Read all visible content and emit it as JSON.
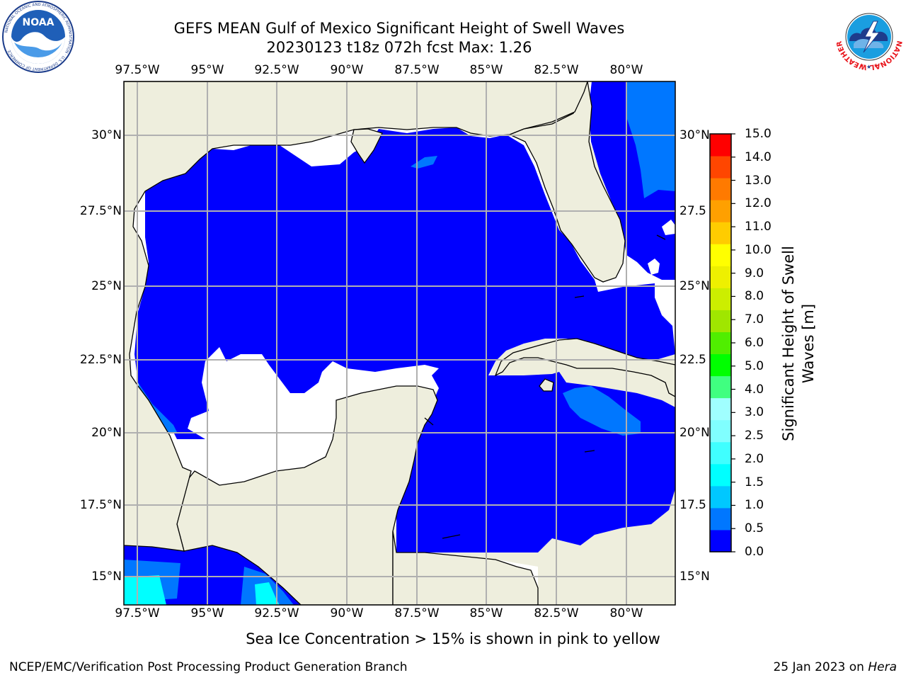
{
  "title": {
    "line1": "GEFS MEAN Gulf of Mexico Significant Height of Swell Waves",
    "line2": "20230123 t18z 072h fcst   Max: 1.26"
  },
  "map": {
    "lon_labels": [
      "97.5°W",
      "95°W",
      "92.5°W",
      "90°W",
      "87.5°W",
      "85°W",
      "82.5°W",
      "80°W"
    ],
    "lat_labels_left": [
      "30°N",
      "27.5°N",
      "25°N",
      "22.5°N",
      "20°N",
      "17.5°N",
      "15°N"
    ],
    "lat_labels_right": [
      "30°N",
      "27.5",
      "25°N",
      "22.5",
      "20°N",
      "17.5",
      "15°N"
    ],
    "extent": {
      "lon_min": -98,
      "lon_max": -78.2,
      "lat_min": 14.0,
      "lat_max": 31.8
    },
    "land_color": "#EEEEDD",
    "grid_color": "#B0B0B0"
  },
  "colorbar": {
    "label": "Significant Height of Swell Waves [m]",
    "tick_labels": [
      "0.0",
      "0.5",
      "1.0",
      "1.5",
      "2.0",
      "2.5",
      "3.0",
      "4.0",
      "5.0",
      "6.0",
      "7.0",
      "8.0",
      "9.0",
      "10.0",
      "11.0",
      "12.0",
      "13.0",
      "14.0",
      "15.0"
    ],
    "colors": [
      "#0000FF",
      "#0077FF",
      "#00C8FF",
      "#00FFFF",
      "#40FFFF",
      "#80FFFF",
      "#A0FFFF",
      "#40FF80",
      "#00FF00",
      "#50EE00",
      "#A0E600",
      "#CCEE00",
      "#EEF000",
      "#FFFF00",
      "#FFCC00",
      "#FFA000",
      "#FF7A00",
      "#FF4600",
      "#FF0000"
    ]
  },
  "note": "Sea Ice Concentration > 15% is shown in pink to yellow",
  "footer": {
    "left": "NCEP/EMC/Verification Post Processing Product Generation Branch",
    "right_prefix": "25 Jan 2023 on ",
    "right_host": "Hera"
  },
  "logos": {
    "noaa": {
      "text": "NOAA",
      "ring_text": "NATIONAL OCEANIC AND ATMOSPHERIC ADMINISTRATION · U.S. DEPARTMENT OF COMMERCE"
    },
    "nws": {
      "ring_text": "NATIONAL WEATHER SERVICE"
    }
  }
}
